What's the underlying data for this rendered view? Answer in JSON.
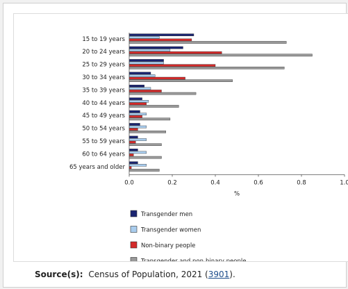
{
  "chart_data": {
    "type": "bar",
    "orientation": "horizontal",
    "categories": [
      "15 to 19 years",
      "20 to 24 years",
      "25 to 29 years",
      "30 to 34 years",
      "35 to 39 years",
      "40 to 44 years",
      "45 to 49 years",
      "50 to 54 years",
      "55 to 59 years",
      "60 to 64 years",
      "65 years and older"
    ],
    "series": [
      {
        "name": "Transgender men",
        "color": "#1a2470",
        "values": [
          0.3,
          0.25,
          0.16,
          0.1,
          0.07,
          0.06,
          0.05,
          0.05,
          0.04,
          0.04,
          0.04
        ]
      },
      {
        "name": "Transgender women",
        "color": "#a9cdee",
        "values": [
          0.14,
          0.19,
          0.16,
          0.12,
          0.1,
          0.09,
          0.08,
          0.08,
          0.08,
          0.08,
          0.08
        ]
      },
      {
        "name": "Non-binary people",
        "color": "#d42a2a",
        "values": [
          0.29,
          0.43,
          0.4,
          0.26,
          0.15,
          0.08,
          0.06,
          0.04,
          0.03,
          0.02,
          0.01
        ]
      },
      {
        "name": "Transgender and non-binary people",
        "color": "#9a9a9a",
        "values": [
          0.73,
          0.85,
          0.72,
          0.48,
          0.31,
          0.23,
          0.19,
          0.17,
          0.15,
          0.15,
          0.14
        ]
      }
    ],
    "xlabel": "%",
    "xlim": [
      0.0,
      1.0
    ],
    "xticks": [
      "0.0",
      "0.2",
      "0.4",
      "0.6",
      "0.8",
      "1.0"
    ],
    "legend_position": "bottom",
    "grid": false
  },
  "source": {
    "label": "Source(s):",
    "text": "Census of Population, 2021 (",
    "link": "3901",
    "suffix": ")."
  }
}
